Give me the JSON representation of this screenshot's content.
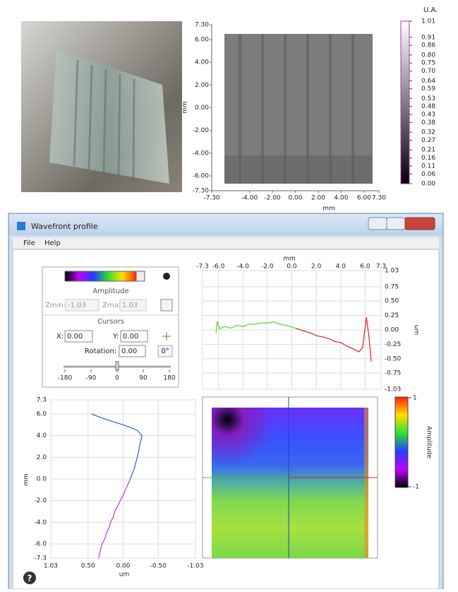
{
  "top_map": {
    "xlabel": "mm",
    "ylabel": "mm",
    "xlim": [
      -7.3,
      7.3
    ],
    "ylim": [
      -7.3,
      7.3
    ],
    "xticks": [
      {
        "value": -7.3,
        "label": "-7.30"
      },
      {
        "value": -4,
        "label": "-4.00"
      },
      {
        "value": -2,
        "label": "-2.00"
      },
      {
        "value": 0,
        "label": "0.00"
      },
      {
        "value": 2,
        "label": "2.00"
      },
      {
        "value": 4,
        "label": "4.00"
      },
      {
        "value": 6,
        "label": "6.00"
      },
      {
        "value": 7.3,
        "label": "7.30"
      }
    ],
    "yticks": [
      {
        "value": 7.3,
        "label": "7.30"
      },
      {
        "value": 6,
        "label": "6.00"
      },
      {
        "value": 4,
        "label": "4.00"
      },
      {
        "value": 2,
        "label": "2.00"
      },
      {
        "value": 0,
        "label": "0.00"
      },
      {
        "value": -2,
        "label": "-2.00"
      },
      {
        "value": -4,
        "label": "-4.00"
      },
      {
        "value": -6,
        "label": "-6.00"
      },
      {
        "value": -7.3,
        "label": "-7.30"
      }
    ]
  },
  "top_colorbar": {
    "unit": "U.A.",
    "lim": [
      0,
      1.01
    ],
    "ticks": [
      1.01,
      0.91,
      0.86,
      {
        "value": 0.8,
        "label": "0.80"
      },
      0.75,
      {
        "value": 0.7,
        "label": "0.70"
      },
      0.64,
      0.59,
      0.53,
      0.48,
      0.43,
      0.38,
      0.32,
      0.27,
      0.21,
      0.16,
      0.11,
      0.06,
      {
        "value": 0,
        "label": "0.00"
      }
    ]
  },
  "window": {
    "title": "Wavefront profile",
    "menu": [
      "File",
      "Help"
    ],
    "controls": {
      "amplitude_label": "Amplitude",
      "zmin_label": "Zmin:",
      "zmin": "-1.03",
      "zmax_label": "Zmax:",
      "zmax": "1.03",
      "cursors_label": "Cursors",
      "x_label": "X:",
      "x": "0.00",
      "y_label": "Y:",
      "y": "0.00",
      "rotation_label": "Rotation:",
      "rotation": "0.00",
      "zero_button": "0°",
      "slider_lim": [
        -180,
        180
      ],
      "slider_ticks": [
        -180,
        -90,
        0,
        90,
        180
      ]
    },
    "h_profile": {
      "xlabel": "mm",
      "ylabel": "um",
      "xlim": [
        -7.3,
        7.3
      ],
      "ylim": [
        -1.03,
        1.03
      ],
      "xticks": [
        -7.3,
        {
          "value": -6,
          "label": "-6.0"
        },
        {
          "value": -4,
          "label": "-4.0"
        },
        {
          "value": -2,
          "label": "-2.0"
        },
        {
          "value": 0,
          "label": "0.0"
        },
        {
          "value": 2,
          "label": "2.0"
        },
        {
          "value": 4,
          "label": "4.0"
        },
        {
          "value": 6,
          "label": "6.0"
        },
        7.3
      ],
      "yticks": [
        1.03,
        0.75,
        {
          "value": 0.5,
          "label": "0.50"
        },
        0.25,
        {
          "value": 0,
          "label": "0.00"
        },
        -0.25,
        {
          "value": -0.5,
          "label": "-0.50"
        },
        -0.75,
        -1.03
      ],
      "series": [
        {
          "color": "#4fd626",
          "x": [
            -6.2,
            -6.1,
            -5.9,
            -5.5,
            -5,
            -4.5,
            -4,
            -3.5,
            -3,
            -2.5,
            -2,
            -1.5,
            -1,
            -0.5,
            0,
            0.3
          ],
          "values": [
            -0.05,
            0.15,
            0.02,
            0.06,
            0.03,
            0.08,
            0.06,
            0.1,
            0.1,
            0.12,
            0.12,
            0.14,
            0.1,
            0.08,
            0.05,
            0.03
          ]
        },
        {
          "color": "#e02020",
          "x": [
            0.3,
            1,
            1.5,
            2,
            2.5,
            3,
            3.5,
            4,
            4.5,
            5,
            5.5,
            5.8,
            6.1,
            6.3,
            6.5
          ],
          "values": [
            0.03,
            -0.02,
            -0.05,
            -0.1,
            -0.12,
            -0.15,
            -0.2,
            -0.22,
            -0.28,
            -0.33,
            -0.38,
            -0.3,
            0.22,
            -0.1,
            -0.55
          ]
        }
      ]
    },
    "v_profile": {
      "xlabel": "um",
      "ylabel": "mm",
      "xlim": [
        1.03,
        -1.03
      ],
      "ylim": [
        -7.3,
        7.3
      ],
      "xticks": [
        1.03,
        {
          "value": 0.5,
          "label": "0.50"
        },
        {
          "value": 0,
          "label": "0.00"
        },
        {
          "value": -0.5,
          "label": "-0.50"
        },
        -1.03
      ],
      "yticks": [
        7.3,
        {
          "value": 6,
          "label": "6.0"
        },
        {
          "value": 4,
          "label": "4.0"
        },
        {
          "value": 2,
          "label": "2.0"
        },
        {
          "value": 0,
          "label": "0.0"
        },
        {
          "value": -2,
          "label": "-2.0"
        },
        {
          "value": -4,
          "label": "-4.0"
        },
        {
          "value": -6,
          "label": "-6.0"
        },
        -7.3
      ],
      "series": [
        {
          "color": "#2a5bd8",
          "y": [
            6,
            5.5,
            5,
            4.5,
            4,
            3.5,
            3,
            2.5,
            2,
            1.5,
            1,
            0.5,
            0
          ],
          "values": [
            0.45,
            0.25,
            0,
            -0.2,
            -0.27,
            -0.25,
            -0.23,
            -0.22,
            -0.2,
            -0.18,
            -0.16,
            -0.13,
            -0.1
          ]
        },
        {
          "color": "#c030e0",
          "y": [
            0,
            -0.5,
            -1,
            -1.5,
            -2,
            -2.5,
            -3,
            -3.5,
            -4,
            -4.5,
            -5,
            -5.5,
            -6,
            -6.5,
            -7.3
          ],
          "values": [
            -0.1,
            -0.07,
            -0.03,
            0,
            0.04,
            0.08,
            0.12,
            0.14,
            0.18,
            0.2,
            0.24,
            0.26,
            0.3,
            0.32,
            0.35
          ]
        }
      ]
    },
    "map_colorbar": {
      "label": "Amplitude",
      "lim": [
        -1,
        1
      ],
      "ticks": [
        1,
        -1
      ]
    },
    "help_icon": "?"
  }
}
